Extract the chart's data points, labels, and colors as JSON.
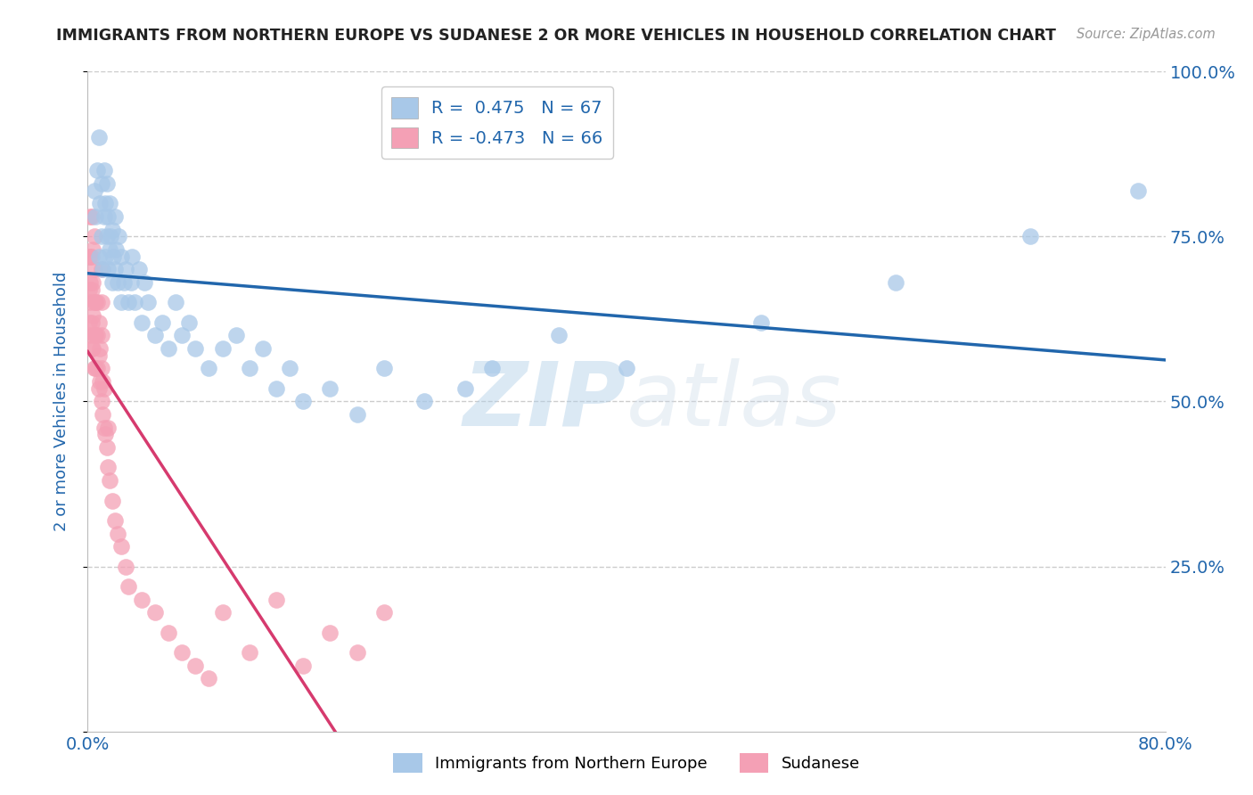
{
  "title": "IMMIGRANTS FROM NORTHERN EUROPE VS SUDANESE 2 OR MORE VEHICLES IN HOUSEHOLD CORRELATION CHART",
  "source": "Source: ZipAtlas.com",
  "ylabel": "2 or more Vehicles in Household",
  "xlim": [
    0.0,
    0.8
  ],
  "ylim": [
    0.0,
    1.0
  ],
  "yticks": [
    0.0,
    0.25,
    0.5,
    0.75,
    1.0
  ],
  "yticklabels_right": [
    "",
    "25.0%",
    "50.0%",
    "75.0%",
    "100.0%"
  ],
  "blue_color": "#a8c8e8",
  "pink_color": "#f4a0b5",
  "blue_line_color": "#2166ac",
  "pink_line_color": "#d63a6e",
  "blue_R": 0.475,
  "blue_N": 67,
  "pink_R": -0.473,
  "pink_N": 66,
  "watermark_zip": "ZIP",
  "watermark_atlas": "atlas",
  "legend_label_blue": "Immigrants from Northern Europe",
  "legend_label_pink": "Sudanese",
  "blue_points_x": [
    0.005,
    0.006,
    0.007,
    0.008,
    0.008,
    0.009,
    0.01,
    0.01,
    0.011,
    0.012,
    0.012,
    0.013,
    0.013,
    0.014,
    0.014,
    0.015,
    0.015,
    0.016,
    0.016,
    0.017,
    0.018,
    0.018,
    0.019,
    0.02,
    0.02,
    0.021,
    0.022,
    0.023,
    0.025,
    0.025,
    0.027,
    0.028,
    0.03,
    0.032,
    0.033,
    0.035,
    0.038,
    0.04,
    0.042,
    0.045,
    0.05,
    0.055,
    0.06,
    0.065,
    0.07,
    0.075,
    0.08,
    0.09,
    0.1,
    0.11,
    0.12,
    0.13,
    0.14,
    0.15,
    0.16,
    0.18,
    0.2,
    0.22,
    0.25,
    0.28,
    0.3,
    0.35,
    0.4,
    0.5,
    0.6,
    0.7,
    0.78
  ],
  "blue_points_y": [
    0.82,
    0.78,
    0.85,
    0.72,
    0.9,
    0.8,
    0.75,
    0.83,
    0.7,
    0.78,
    0.85,
    0.72,
    0.8,
    0.75,
    0.83,
    0.7,
    0.78,
    0.73,
    0.8,
    0.75,
    0.68,
    0.76,
    0.72,
    0.7,
    0.78,
    0.73,
    0.68,
    0.75,
    0.65,
    0.72,
    0.68,
    0.7,
    0.65,
    0.68,
    0.72,
    0.65,
    0.7,
    0.62,
    0.68,
    0.65,
    0.6,
    0.62,
    0.58,
    0.65,
    0.6,
    0.62,
    0.58,
    0.55,
    0.58,
    0.6,
    0.55,
    0.58,
    0.52,
    0.55,
    0.5,
    0.52,
    0.48,
    0.55,
    0.5,
    0.52,
    0.55,
    0.6,
    0.55,
    0.62,
    0.68,
    0.75,
    0.82
  ],
  "pink_points_x": [
    0.001,
    0.001,
    0.001,
    0.002,
    0.002,
    0.002,
    0.002,
    0.002,
    0.003,
    0.003,
    0.003,
    0.003,
    0.003,
    0.004,
    0.004,
    0.004,
    0.004,
    0.005,
    0.005,
    0.005,
    0.005,
    0.005,
    0.006,
    0.006,
    0.006,
    0.007,
    0.007,
    0.007,
    0.008,
    0.008,
    0.008,
    0.009,
    0.009,
    0.01,
    0.01,
    0.01,
    0.01,
    0.01,
    0.011,
    0.011,
    0.012,
    0.012,
    0.013,
    0.014,
    0.015,
    0.015,
    0.016,
    0.018,
    0.02,
    0.022,
    0.025,
    0.028,
    0.03,
    0.04,
    0.05,
    0.06,
    0.07,
    0.08,
    0.09,
    0.1,
    0.12,
    0.14,
    0.16,
    0.18,
    0.2,
    0.22
  ],
  "pink_points_y": [
    0.62,
    0.67,
    0.72,
    0.6,
    0.65,
    0.68,
    0.72,
    0.78,
    0.58,
    0.62,
    0.67,
    0.72,
    0.78,
    0.58,
    0.63,
    0.68,
    0.73,
    0.55,
    0.6,
    0.65,
    0.7,
    0.75,
    0.55,
    0.6,
    0.65,
    0.55,
    0.6,
    0.65,
    0.52,
    0.57,
    0.62,
    0.53,
    0.58,
    0.5,
    0.55,
    0.6,
    0.65,
    0.7,
    0.48,
    0.53,
    0.46,
    0.52,
    0.45,
    0.43,
    0.4,
    0.46,
    0.38,
    0.35,
    0.32,
    0.3,
    0.28,
    0.25,
    0.22,
    0.2,
    0.18,
    0.15,
    0.12,
    0.1,
    0.08,
    0.18,
    0.12,
    0.2,
    0.1,
    0.15,
    0.12,
    0.18
  ],
  "background_color": "#ffffff",
  "grid_color": "#cccccc",
  "title_color": "#222222",
  "axis_label_color": "#2166ac",
  "tick_label_color": "#2166ac"
}
